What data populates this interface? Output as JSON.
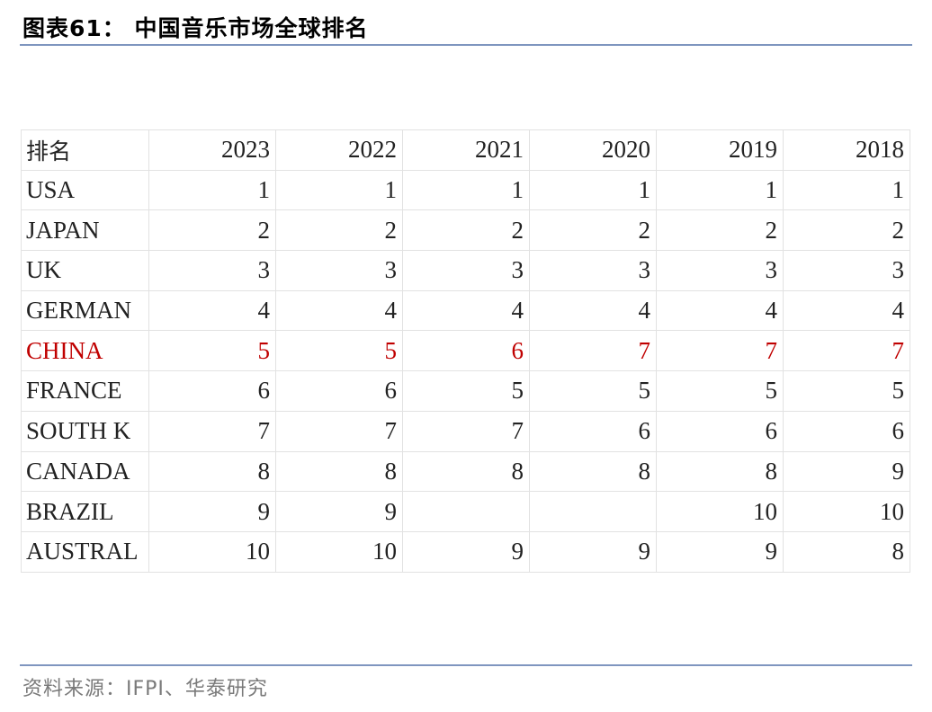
{
  "header": {
    "title": "图表61：  中国音乐市场全球排名"
  },
  "table": {
    "corner_label": "排名",
    "years": [
      "2023",
      "2022",
      "2021",
      "2020",
      "2019",
      "2018"
    ],
    "highlight_color": "#c00000",
    "rows": [
      {
        "country": "USA",
        "ranks": [
          "1",
          "1",
          "1",
          "1",
          "1",
          "1"
        ],
        "highlight": false
      },
      {
        "country": "JAPAN",
        "ranks": [
          "2",
          "2",
          "2",
          "2",
          "2",
          "2"
        ],
        "highlight": false
      },
      {
        "country": "UK",
        "ranks": [
          "3",
          "3",
          "3",
          "3",
          "3",
          "3"
        ],
        "highlight": false
      },
      {
        "country": "GERMAN",
        "ranks": [
          "4",
          "4",
          "4",
          "4",
          "4",
          "4"
        ],
        "highlight": false
      },
      {
        "country": "CHINA",
        "ranks": [
          "5",
          "5",
          "6",
          "7",
          "7",
          "7"
        ],
        "highlight": true
      },
      {
        "country": "FRANCE",
        "ranks": [
          "6",
          "6",
          "5",
          "5",
          "5",
          "5"
        ],
        "highlight": false
      },
      {
        "country": "SOUTH K",
        "ranks": [
          "7",
          "7",
          "7",
          "6",
          "6",
          "6"
        ],
        "highlight": false
      },
      {
        "country": "CANADA",
        "ranks": [
          "8",
          "8",
          "8",
          "8",
          "8",
          "9"
        ],
        "highlight": false
      },
      {
        "country": "BRAZIL",
        "ranks": [
          "9",
          "9",
          "",
          "",
          "10",
          "10"
        ],
        "highlight": false
      },
      {
        "country": "AUSTRAL",
        "ranks": [
          "10",
          "10",
          "9",
          "9",
          "9",
          "8"
        ],
        "highlight": false
      }
    ]
  },
  "footer": {
    "source": "资料来源：IFPI、华泰研究"
  }
}
